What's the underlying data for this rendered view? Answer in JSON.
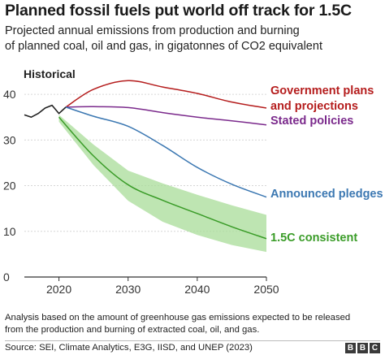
{
  "header": {
    "title": "Planned fossil fuels put world off track for 1.5C",
    "subtitle_line1": "Projected annual emissions from production and burning",
    "subtitle_line2": "of planned coal, oil and gas, in gigatonnes of CO2 equivalent"
  },
  "footer": {
    "note_line1": "Analysis based on the amount of greenhouse gas emissions expected to be released",
    "note_line2": "from the production and burning of extracted coal, oil, and gas.",
    "source": "Source: SEI, Climate Analytics, E3G, IISD, and UNEP (2023)",
    "logo_letters": [
      "B",
      "B",
      "C"
    ]
  },
  "chart_data": {
    "type": "line",
    "xlim": [
      2015,
      2050
    ],
    "ylim": [
      0,
      45
    ],
    "x_ticks": [
      2020,
      2030,
      2040,
      2050
    ],
    "y_ticks": [
      0,
      10,
      20,
      30,
      40
    ],
    "grid": "horizontal",
    "series": [
      {
        "name": "Historical",
        "color": "#222222",
        "x": [
          2015,
          2016,
          2017,
          2018,
          2019,
          2020,
          2021
        ],
        "y": [
          35.5,
          35.0,
          35.8,
          37.0,
          37.6,
          35.8,
          37.2
        ]
      },
      {
        "name": "Government plans and projections",
        "label_lines": [
          "Government plans",
          "and projections"
        ],
        "color": "#b51d1d",
        "x": [
          2021,
          2025,
          2030,
          2035,
          2040,
          2045,
          2050
        ],
        "y": [
          37.2,
          41.1,
          43.0,
          41.6,
          40.2,
          38.3,
          37.0
        ]
      },
      {
        "name": "Stated policies",
        "label_lines": [
          "Stated policies"
        ],
        "color": "#7b2a8c",
        "x": [
          2021,
          2025,
          2030,
          2035,
          2040,
          2045,
          2050
        ],
        "y": [
          37.2,
          37.3,
          37.1,
          36.0,
          35.0,
          34.2,
          33.3
        ]
      },
      {
        "name": "Announced pledges",
        "label_lines": [
          "Announced pledges"
        ],
        "color": "#3c78b2",
        "x": [
          2021,
          2025,
          2030,
          2035,
          2040,
          2045,
          2050
        ],
        "y": [
          37.2,
          35.2,
          33.0,
          28.8,
          24.0,
          20.3,
          17.5
        ]
      },
      {
        "name": "1.5C consistent",
        "label_lines": [
          "1.5C consistent"
        ],
        "color": "#3a9c28",
        "x": [
          2020,
          2025,
          2030,
          2035,
          2040,
          2045,
          2050
        ],
        "y": [
          35.0,
          26.5,
          20.2,
          16.8,
          13.9,
          11.0,
          8.4
        ]
      }
    ],
    "range": {
      "name": "1.5C range",
      "color": "#a8dc98",
      "x": [
        2020,
        2025,
        2030,
        2035,
        2040,
        2045,
        2050
      ],
      "upper": [
        35.5,
        29.0,
        23.3,
        20.5,
        18.0,
        15.7,
        13.6
      ],
      "lower": [
        34.0,
        24.5,
        16.7,
        12.1,
        9.2,
        7.0,
        5.5
      ]
    }
  }
}
